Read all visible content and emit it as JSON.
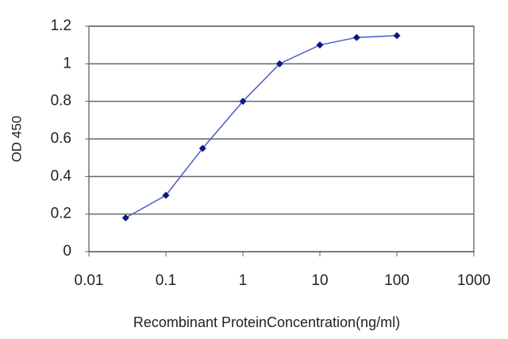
{
  "chart_data": {
    "type": "line",
    "x_label": "Recombinant ProteinConcentration(ng/ml)",
    "y_label": "OD 450",
    "x": [
      0.03,
      0.1,
      0.3,
      1,
      3,
      10,
      30,
      100
    ],
    "series": [
      {
        "color": "#4a5cc8",
        "marker_color": "#0a1a80",
        "values": [
          0.18,
          0.3,
          0.55,
          0.8,
          1.0,
          1.1,
          1.14,
          1.15
        ]
      }
    ],
    "xlim": [
      0.01,
      1000
    ],
    "xticks": [
      0.01,
      0.1,
      1,
      10,
      100,
      1000
    ],
    "xscale": "log",
    "ylim": [
      0,
      1.2
    ],
    "yticks": [
      0,
      0.2,
      0.4,
      0.6,
      0.8,
      1,
      1.2
    ],
    "grid": true
  }
}
